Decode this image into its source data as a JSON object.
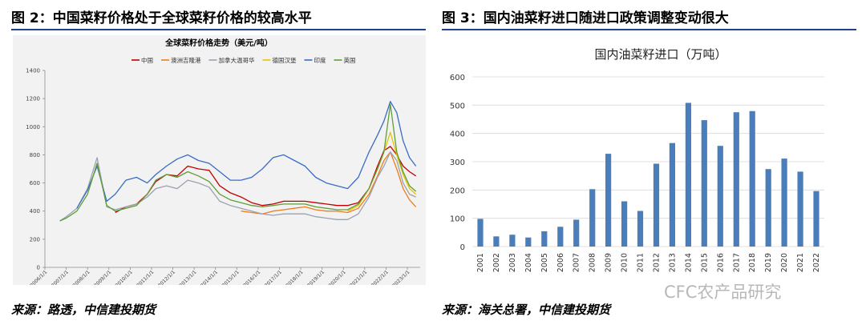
{
  "figure2": {
    "title": "图 2：中国菜籽价格处于全球菜籽价格的较高水平",
    "source": "来源：路透，中信建投期货"
  },
  "figure3": {
    "title": "图 3：国内油菜籽进口随进口政策调整变动很大",
    "source": "来源：海关总署，中信建投期货"
  },
  "watermark": "CFC农产品研究",
  "chart_data": [
    {
      "type": "line",
      "title": "全球菜籽价格走势（美元/吨）",
      "xlabel": "",
      "ylabel": "",
      "ylim": [
        0,
        1400
      ],
      "yticks": [
        0,
        200,
        400,
        600,
        800,
        1000,
        1200,
        1400
      ],
      "xticks": [
        "2006/1/1",
        "2007/1/1",
        "2008/1/1",
        "2009/1/1",
        "2010/1/1",
        "2011/1/1",
        "2012/1/1",
        "2013/1/1",
        "2014/1/1",
        "2015/1/1",
        "2016/1/1",
        "2017/1/1",
        "2018/1/1",
        "2019/1/1",
        "2020/1/1",
        "2021/1/1",
        "2022/1/1",
        "2023/1/1"
      ],
      "legend_position": "top",
      "grid": false,
      "x": [
        2006.7,
        2007.0,
        2007.5,
        2008.0,
        2008.45,
        2008.9,
        2009.3,
        2009.8,
        2010.3,
        2010.8,
        2011.2,
        2011.7,
        2012.2,
        2012.7,
        2013.2,
        2013.7,
        2014.2,
        2014.7,
        2015.2,
        2015.7,
        2016.2,
        2016.7,
        2017.2,
        2017.7,
        2018.2,
        2018.7,
        2019.2,
        2019.7,
        2020.2,
        2020.7,
        2021.2,
        2021.6,
        2021.9,
        2022.2,
        2022.5,
        2022.8,
        2023.1,
        2023.4
      ],
      "series": [
        {
          "name": "中国",
          "color": "#c00000",
          "values": [
            null,
            null,
            null,
            null,
            null,
            null,
            390,
            430,
            450,
            520,
            610,
            660,
            650,
            720,
            700,
            690,
            580,
            530,
            500,
            460,
            440,
            450,
            470,
            470,
            470,
            460,
            450,
            440,
            440,
            460,
            560,
            720,
            830,
            860,
            800,
            720,
            680,
            650
          ]
        },
        {
          "name": "澳洲吉隆港",
          "color": "#f07c1c",
          "values": [
            null,
            null,
            null,
            null,
            null,
            null,
            null,
            null,
            null,
            null,
            null,
            null,
            null,
            null,
            null,
            null,
            null,
            null,
            400,
            390,
            380,
            400,
            410,
            420,
            430,
            410,
            400,
            400,
            390,
            420,
            520,
            650,
            760,
            820,
            700,
            560,
            480,
            430
          ]
        },
        {
          "name": "加拿大温哥华",
          "color": "#9aa1b0",
          "values": [
            330,
            360,
            420,
            560,
            780,
            430,
            410,
            430,
            450,
            500,
            560,
            580,
            560,
            620,
            600,
            570,
            470,
            440,
            420,
            400,
            380,
            370,
            380,
            380,
            380,
            360,
            350,
            340,
            340,
            380,
            500,
            640,
            720,
            820,
            760,
            600,
            520,
            500
          ]
        },
        {
          "name": "德国汉堡",
          "color": "#e5c300",
          "values": [
            null,
            null,
            null,
            null,
            null,
            null,
            null,
            null,
            null,
            null,
            null,
            null,
            null,
            null,
            null,
            null,
            null,
            null,
            null,
            null,
            null,
            null,
            null,
            null,
            null,
            null,
            null,
            null,
            400,
            440,
            560,
            700,
            820,
            960,
            800,
            660,
            560,
            520
          ]
        },
        {
          "name": "印度",
          "color": "#3a6cc6",
          "values": [
            null,
            null,
            420,
            550,
            720,
            470,
            520,
            620,
            640,
            600,
            660,
            720,
            770,
            800,
            760,
            740,
            680,
            620,
            620,
            640,
            700,
            780,
            800,
            760,
            720,
            640,
            600,
            580,
            560,
            640,
            820,
            940,
            1040,
            1180,
            1100,
            900,
            780,
            720
          ]
        },
        {
          "name": "英国",
          "color": "#5f9e35",
          "values": [
            330,
            350,
            400,
            520,
            740,
            440,
            400,
            420,
            440,
            520,
            620,
            660,
            640,
            680,
            650,
            610,
            520,
            480,
            460,
            440,
            430,
            440,
            450,
            450,
            450,
            430,
            420,
            410,
            410,
            450,
            560,
            700,
            820,
            1160,
            820,
            680,
            580,
            540
          ]
        }
      ]
    },
    {
      "type": "bar",
      "title": "国内油菜籽进口（万吨）",
      "xlabel": "",
      "ylabel": "",
      "ylim": [
        0,
        600
      ],
      "yticks": [
        0,
        100,
        200,
        300,
        400,
        500,
        600
      ],
      "grid": true,
      "color": "#4a7ebb",
      "categories": [
        "2001",
        "2002",
        "2003",
        "2004",
        "2005",
        "2006",
        "2007",
        "2008",
        "2009",
        "2010",
        "2011",
        "2012",
        "2013",
        "2014",
        "2015",
        "2016",
        "2017",
        "2018",
        "2019",
        "2020",
        "2021",
        "2022"
      ],
      "values": [
        98,
        36,
        42,
        32,
        54,
        70,
        95,
        203,
        328,
        160,
        126,
        293,
        366,
        508,
        447,
        356,
        475,
        479,
        274,
        311,
        265,
        196
      ]
    }
  ]
}
